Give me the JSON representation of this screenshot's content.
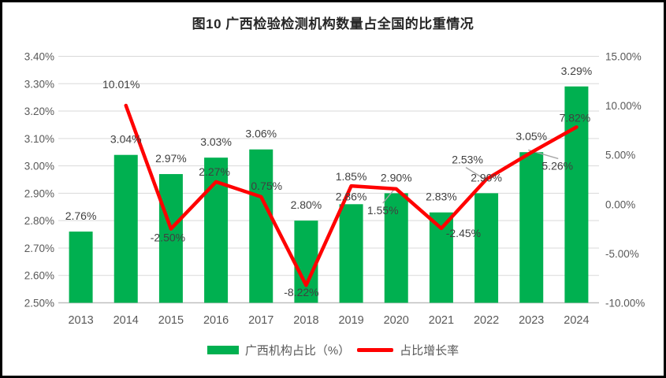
{
  "title": "图10 广西检验检测机构数量占全国的比重情况",
  "legend": [
    {
      "type": "bar",
      "label": "广西机构占比（%）",
      "color": "#00B050"
    },
    {
      "type": "line",
      "label": "占比增长率",
      "color": "#FF0000"
    }
  ],
  "colors": {
    "bar": "#00B050",
    "line": "#FF0000",
    "gridline": "#D9D9D9",
    "axis_line": "#BFBFBF",
    "axis_text": "#595959",
    "data_label": "#404040",
    "leader_line": "#A6A6A6",
    "frame_border": "#000000",
    "background": "#FFFFFF"
  },
  "chart_data": {
    "type": "bar",
    "subtype": "combo-bar-line",
    "title": "图10 广西检验检测机构数量占全国的比重情况",
    "categories": [
      "2013",
      "2014",
      "2015",
      "2016",
      "2017",
      "2018",
      "2019",
      "2020",
      "2021",
      "2022",
      "2023",
      "2024"
    ],
    "series": [
      {
        "name": "广西机构占比（%）",
        "type": "bar",
        "axis": "left",
        "color": "#00B050",
        "values": [
          2.76,
          3.04,
          2.97,
          3.03,
          3.06,
          2.8,
          2.86,
          2.9,
          2.83,
          2.9,
          3.05,
          3.29
        ],
        "labels": [
          "2.76%",
          "3.04%",
          "2.97%",
          "3.03%",
          "3.06%",
          "2.80%",
          "2.86%",
          "2.90%",
          "2.83%",
          "2.90%",
          "3.05%",
          "3.29%"
        ]
      },
      {
        "name": "占比增长率",
        "type": "line",
        "axis": "right",
        "color": "#FF0000",
        "values": [
          null,
          10.01,
          -2.5,
          2.27,
          0.75,
          -8.22,
          1.85,
          1.55,
          -2.45,
          2.53,
          5.26,
          7.82
        ],
        "labels": [
          null,
          "10.01%",
          "-2.50%",
          "2.27%",
          "0.75%",
          "-8.22%",
          "1.85%",
          "1.55%",
          "-2.45%",
          "2.53%",
          "5.26%",
          "7.82%"
        ]
      }
    ],
    "left_axis": {
      "min": 2.5,
      "max": 3.4,
      "step": 0.1,
      "ticks_top_to_bottom": [
        "3.40%",
        "3.30%",
        "3.20%",
        "3.10%",
        "3.00%",
        "2.90%",
        "2.80%",
        "2.70%",
        "2.60%",
        "2.50%"
      ]
    },
    "right_axis": {
      "min": -10,
      "max": 15,
      "step": 5,
      "ticks_top_to_bottom": [
        "15.00%",
        "10.00%",
        "5.00%",
        "0.00%",
        "-5.00%",
        "-10.00%"
      ]
    },
    "xlabel": "",
    "ylabel": "",
    "grid": true,
    "legend_position": "bottom"
  }
}
